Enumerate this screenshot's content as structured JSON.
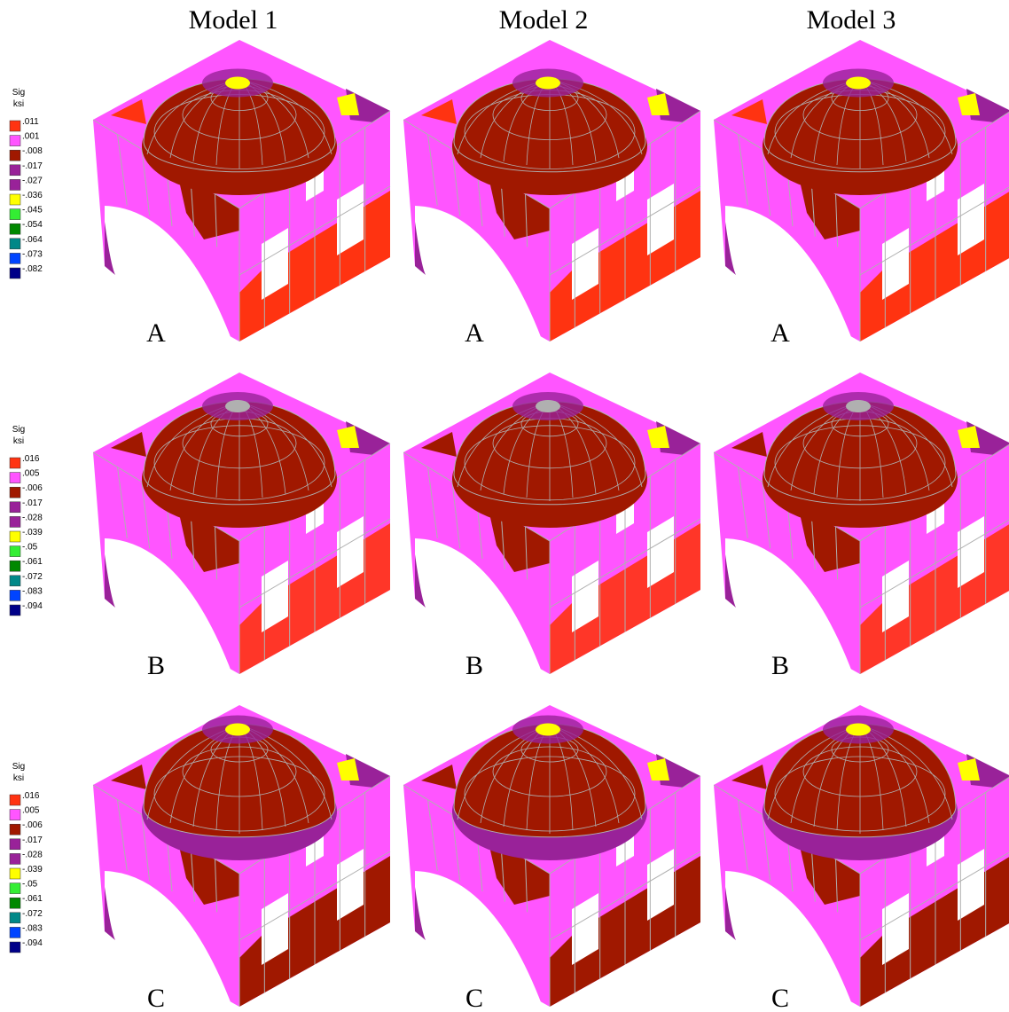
{
  "columns": [
    "Model 1",
    "Model 2",
    "Model 3"
  ],
  "rows": [
    {
      "label": "A",
      "legend": {
        "title": "Sig",
        "unit": "ksi",
        "levels": [
          {
            "label": ".011",
            "color": "#ff3311"
          },
          {
            "label": ".001",
            "color": "#ff55ff"
          },
          {
            "label": "-.008",
            "color": "#a01800"
          },
          {
            "label": "-.017",
            "color": "#992299"
          },
          {
            "label": "-.027",
            "color": "#992299"
          },
          {
            "label": "-.036",
            "color": "#ffff00"
          },
          {
            "label": "-.045",
            "color": "#33ee33"
          },
          {
            "label": "-.054",
            "color": "#008800"
          },
          {
            "label": "-.064",
            "color": "#008888"
          },
          {
            "label": "-.073",
            "color": "#0044ff"
          },
          {
            "label": "-.082",
            "color": "#000088"
          }
        ]
      }
    },
    {
      "label": "B",
      "legend": {
        "title": "Sig",
        "unit": "ksi",
        "levels": [
          {
            "label": ".016",
            "color": "#ff3311"
          },
          {
            "label": ".005",
            "color": "#ff55ff"
          },
          {
            "label": "-.006",
            "color": "#a01800"
          },
          {
            "label": "-.017",
            "color": "#992299"
          },
          {
            "label": "-.028",
            "color": "#992299"
          },
          {
            "label": "-.039",
            "color": "#ffff00"
          },
          {
            "label": "-.05",
            "color": "#33ee33"
          },
          {
            "label": "-.061",
            "color": "#008800"
          },
          {
            "label": "-.072",
            "color": "#008888"
          },
          {
            "label": "-.083",
            "color": "#0044ff"
          },
          {
            "label": "-.094",
            "color": "#000088"
          }
        ]
      }
    },
    {
      "label": "C",
      "legend": {
        "title": "Sig",
        "unit": "ksi",
        "levels": [
          {
            "label": ".016",
            "color": "#ff3311"
          },
          {
            "label": ".005",
            "color": "#ff55ff"
          },
          {
            "label": "-.006",
            "color": "#a01800"
          },
          {
            "label": "-.017",
            "color": "#992299"
          },
          {
            "label": "-.028",
            "color": "#992299"
          },
          {
            "label": "-.039",
            "color": "#ffff00"
          },
          {
            "label": "-.05",
            "color": "#33ee33"
          },
          {
            "label": "-.061",
            "color": "#008800"
          },
          {
            "label": "-.072",
            "color": "#008888"
          },
          {
            "label": "-.083",
            "color": "#0044ff"
          },
          {
            "label": "-.094",
            "color": "#000088"
          }
        ]
      }
    }
  ]
}
